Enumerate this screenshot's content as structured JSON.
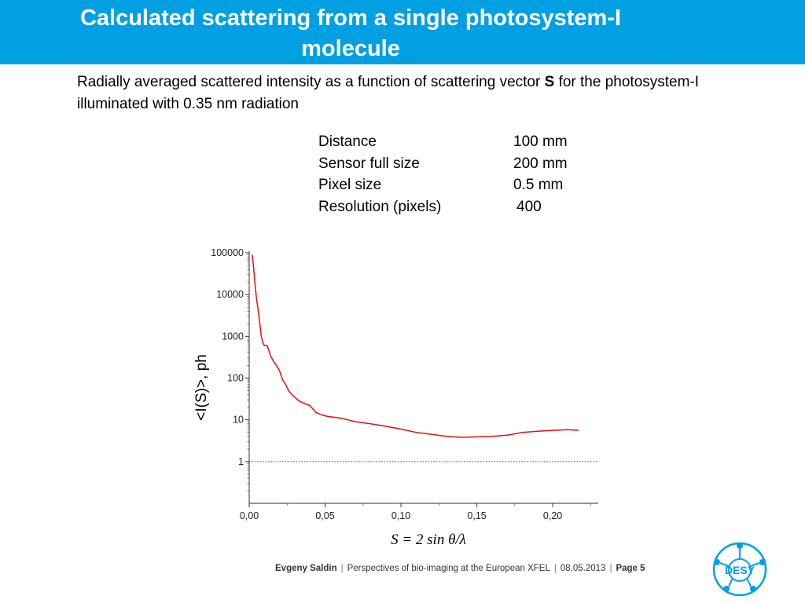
{
  "slide": {
    "title_line1": "Calculated scattering from a single photosystem-I",
    "title_line2": "molecule",
    "subtitle_pre": "Radially averaged scattered intensity as a function of scattering vector ",
    "subtitle_bold": "S",
    "subtitle_post": " for the photosystem-I illuminated with 0.35 nm radiation"
  },
  "parameters": [
    {
      "label": "Distance",
      "value": "100 mm"
    },
    {
      "label": "Sensor full size",
      "value": "200 mm"
    },
    {
      "label": "Pixel size",
      "value": "0.5 mm"
    },
    {
      "label": "Resolution (pixels)",
      "value": "400"
    }
  ],
  "chart_data": {
    "type": "line",
    "ylabel": "<I(S)>, ph",
    "xlabel": "S = 2 sin θ/λ",
    "xlim": [
      0,
      0.23
    ],
    "ylim": [
      0.1,
      100000
    ],
    "yscale": "log",
    "x_ticks": [
      "0,00",
      "0,05",
      "0,10",
      "0,15",
      "0,20"
    ],
    "x_tick_values": [
      0,
      0.05,
      0.1,
      0.15,
      0.2
    ],
    "y_ticks": [
      "100000",
      "10000",
      "1000",
      "100",
      "10",
      "1"
    ],
    "y_tick_values": [
      100000,
      10000,
      1000,
      100,
      10,
      1
    ],
    "reference_line": {
      "y": 1,
      "style": "dotted"
    },
    "series": [
      {
        "color": "#e01010",
        "x": [
          0.002,
          0.003,
          0.004,
          0.005,
          0.006,
          0.007,
          0.008,
          0.009,
          0.01,
          0.011,
          0.012,
          0.014,
          0.016,
          0.018,
          0.02,
          0.022,
          0.024,
          0.026,
          0.028,
          0.03,
          0.033,
          0.036,
          0.04,
          0.044,
          0.048,
          0.052,
          0.056,
          0.06,
          0.065,
          0.07,
          0.075,
          0.08,
          0.09,
          0.1,
          0.11,
          0.12,
          0.13,
          0.14,
          0.15,
          0.16,
          0.17,
          0.18,
          0.19,
          0.2,
          0.21,
          0.217
        ],
        "values": [
          90000,
          40000,
          15000,
          7000,
          4000,
          2000,
          1000,
          700,
          600,
          600,
          580,
          350,
          250,
          200,
          150,
          90,
          70,
          50,
          40,
          35,
          28,
          25,
          22,
          15,
          13,
          12,
          11.5,
          11,
          10,
          9,
          8.5,
          8,
          7,
          6,
          5,
          4.5,
          4,
          3.8,
          3.9,
          4,
          4.3,
          5,
          5.3,
          5.6,
          5.8,
          5.6
        ]
      }
    ]
  },
  "footer": {
    "author": "Evgeny Saldin",
    "sep": "|",
    "talk": "Perspectives of bio-imaging at the European XFEL",
    "date": "08.05.2013",
    "page_label": "Page 5"
  },
  "logo": {
    "text": "DESY",
    "color": "#00a0e3"
  }
}
